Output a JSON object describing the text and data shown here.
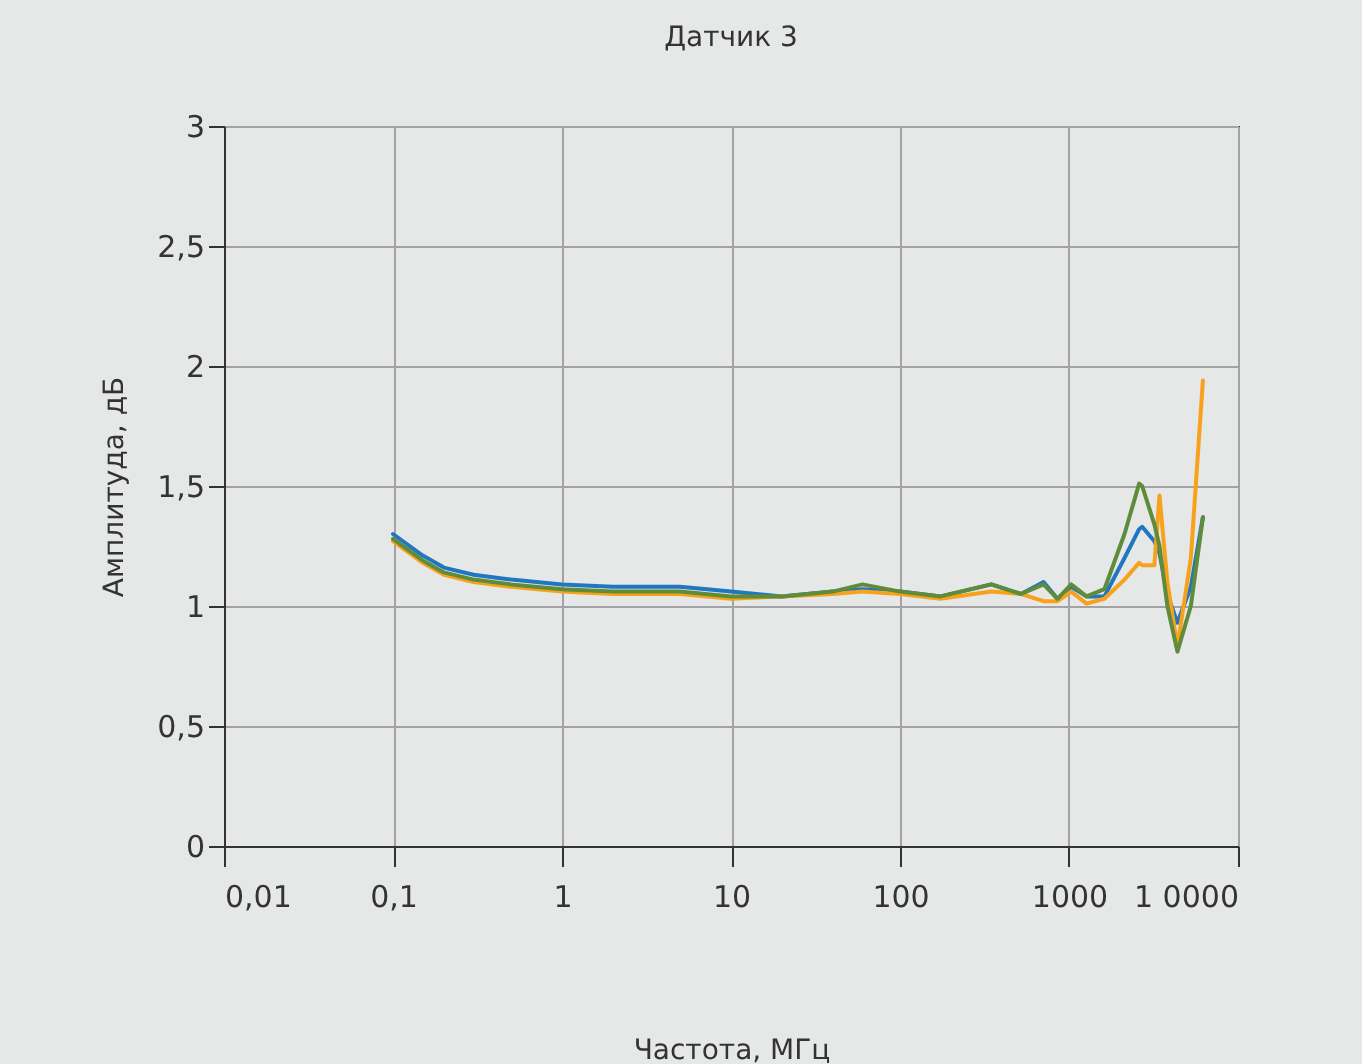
{
  "chart_data": {
    "type": "line",
    "title": "Датчик 3",
    "xlabel": "Частота,  МГц",
    "ylabel": "Амплитуда, дБ",
    "log": "x",
    "grid": true,
    "legend": false,
    "marker": "none",
    "line_style": "solid",
    "xlim": [
      0.01,
      10000
    ],
    "xticks": [
      {
        "value": 0.01,
        "label": "0,01"
      },
      {
        "value": 0.1,
        "label": "0,1"
      },
      1,
      10,
      100,
      1000,
      {
        "value": 10000,
        "label": "1 0000"
      }
    ],
    "ylim": [
      0,
      3
    ],
    "yticks": [
      0,
      {
        "value": 0.5,
        "label": "0,5"
      },
      1,
      {
        "value": 1.5,
        "label": "1,5"
      },
      2,
      {
        "value": 2.5,
        "label": "2,5"
      },
      3
    ],
    "x": [
      0.1,
      0.15,
      0.2,
      0.3,
      0.5,
      1,
      2,
      5,
      10,
      20,
      40,
      60,
      100,
      174,
      347,
      520,
      707,
      855,
      1030,
      1270,
      1620,
      2130,
      2600,
      2710,
      3200,
      3430,
      3820,
      4380,
      5260,
      6200
    ],
    "series": [
      {
        "color": "#1f77c0",
        "values": [
          1.3,
          1.21,
          1.16,
          1.13,
          1.11,
          1.09,
          1.08,
          1.08,
          1.06,
          1.04,
          1.06,
          1.07,
          1.06,
          1.04,
          1.09,
          1.05,
          1.1,
          1.03,
          1.08,
          1.04,
          1.04,
          1.2,
          1.32,
          1.33,
          1.27,
          1.22,
          1.05,
          0.93,
          1.08,
          1.37
        ]
      },
      {
        "color": "#f7a21b",
        "values": [
          1.27,
          1.18,
          1.13,
          1.1,
          1.08,
          1.06,
          1.05,
          1.05,
          1.03,
          1.04,
          1.05,
          1.06,
          1.05,
          1.03,
          1.06,
          1.05,
          1.02,
          1.02,
          1.06,
          1.01,
          1.03,
          1.11,
          1.18,
          1.17,
          1.17,
          1.46,
          1.1,
          0.83,
          1.2,
          1.94
        ]
      },
      {
        "color": "#5e8c3a",
        "values": [
          1.28,
          1.19,
          1.14,
          1.11,
          1.09,
          1.07,
          1.06,
          1.06,
          1.04,
          1.04,
          1.06,
          1.09,
          1.06,
          1.04,
          1.09,
          1.05,
          1.09,
          1.03,
          1.09,
          1.04,
          1.07,
          1.3,
          1.51,
          1.5,
          1.34,
          1.25,
          1.0,
          0.81,
          1.0,
          1.37
        ]
      }
    ]
  }
}
